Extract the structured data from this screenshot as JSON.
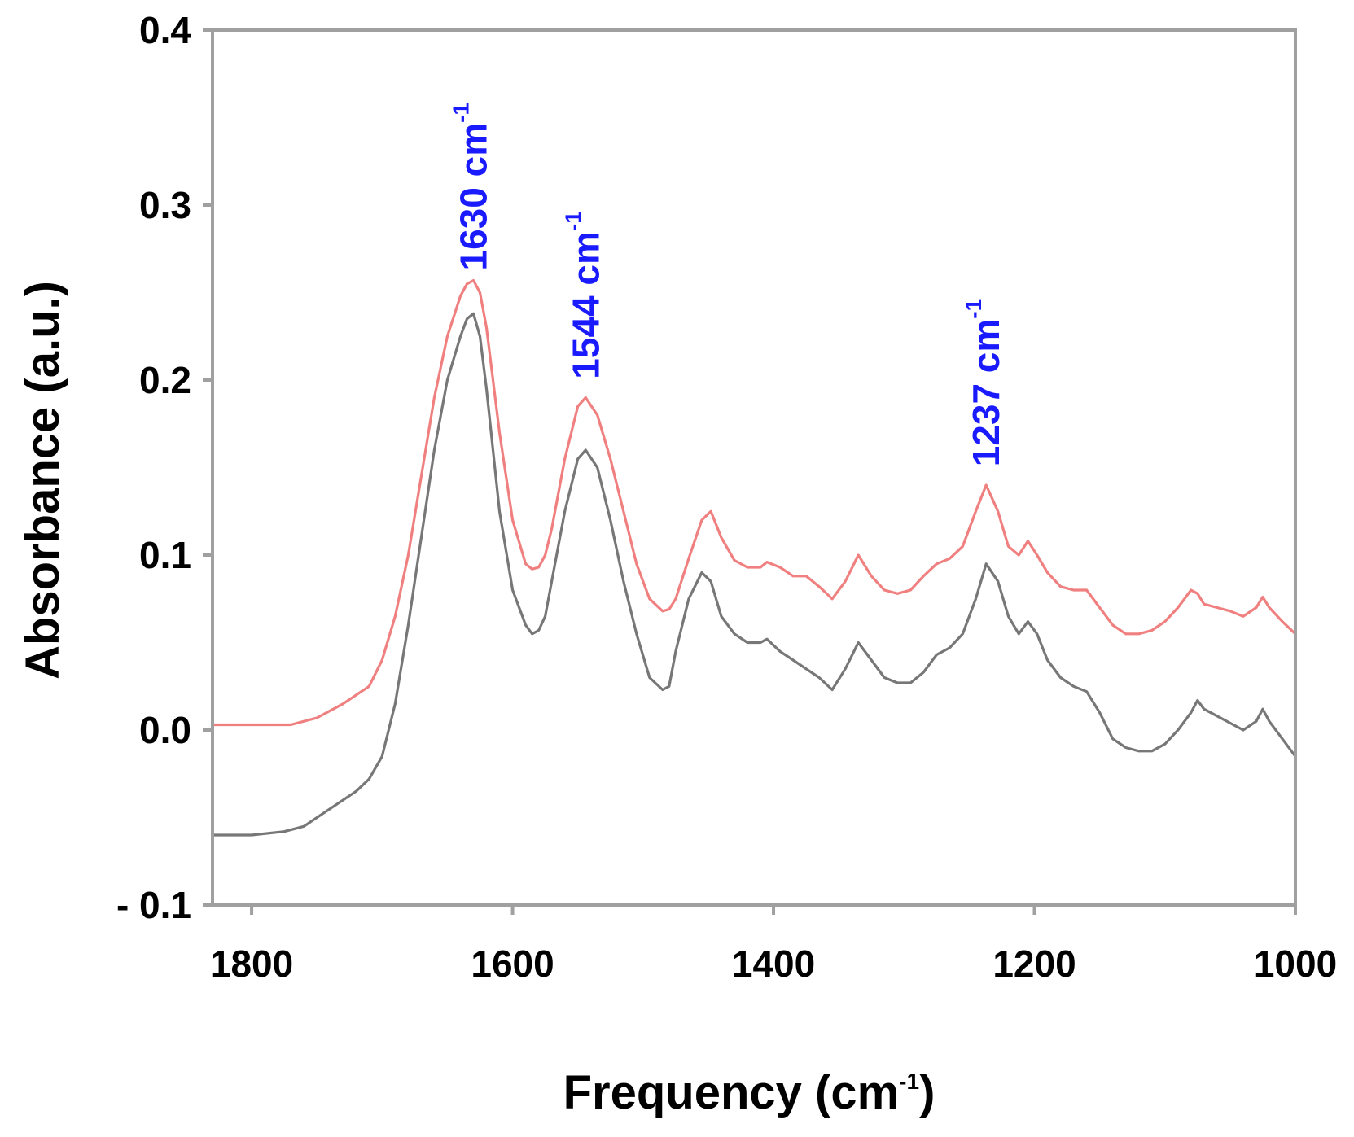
{
  "chart_data": {
    "type": "line",
    "xlabel": {
      "main": "Frequency (cm",
      "sup": "-1",
      "close": ")"
    },
    "ylabel": "Absorbance (a.u.)",
    "xlim": [
      1830,
      1000
    ],
    "ylim": [
      -0.1,
      0.4
    ],
    "x_axis_reversed": true,
    "grid": false,
    "x_ticks": [
      {
        "value": 1800,
        "label": "1800"
      },
      {
        "value": 1600,
        "label": "1600"
      },
      {
        "value": 1400,
        "label": "1400"
      },
      {
        "value": 1200,
        "label": "1200"
      },
      {
        "value": 1000,
        "label": "1000"
      }
    ],
    "y_ticks": [
      {
        "value": 0.4,
        "label": "0.4"
      },
      {
        "value": 0.3,
        "label": "0.3"
      },
      {
        "value": 0.2,
        "label": "0.2"
      },
      {
        "value": 0.1,
        "label": "0.1"
      },
      {
        "value": 0.0,
        "label": "0.0"
      },
      {
        "value": -0.1,
        "label": "- 0.1"
      }
    ],
    "annotations": [
      {
        "x": 1630,
        "y": 0.257,
        "label": "1630 cm",
        "sup": "-1",
        "color": "#1a1aff"
      },
      {
        "x": 1544,
        "y": 0.195,
        "label": "1544 cm",
        "sup": "-1",
        "color": "#1a1aff"
      },
      {
        "x": 1237,
        "y": 0.145,
        "label": "1237 cm",
        "sup": "-1",
        "color": "#1a1aff"
      }
    ],
    "series": [
      {
        "color": "#f08080",
        "x": [
          1830,
          1800,
          1770,
          1750,
          1730,
          1710,
          1700,
          1690,
          1680,
          1670,
          1660,
          1650,
          1640,
          1635,
          1630,
          1625,
          1620,
          1610,
          1600,
          1590,
          1585,
          1580,
          1575,
          1570,
          1560,
          1550,
          1544,
          1535,
          1525,
          1515,
          1505,
          1495,
          1485,
          1480,
          1475,
          1465,
          1455,
          1448,
          1440,
          1430,
          1420,
          1410,
          1405,
          1395,
          1385,
          1375,
          1365,
          1355,
          1345,
          1335,
          1325,
          1315,
          1305,
          1295,
          1285,
          1275,
          1265,
          1255,
          1245,
          1237,
          1228,
          1220,
          1212,
          1205,
          1198,
          1190,
          1180,
          1170,
          1160,
          1150,
          1140,
          1130,
          1120,
          1110,
          1100,
          1090,
          1080,
          1075,
          1070,
          1060,
          1050,
          1040,
          1030,
          1025,
          1020,
          1010,
          1000
        ],
        "y": [
          0.003,
          0.003,
          0.003,
          0.007,
          0.015,
          0.025,
          0.04,
          0.065,
          0.1,
          0.145,
          0.19,
          0.225,
          0.248,
          0.255,
          0.257,
          0.25,
          0.23,
          0.17,
          0.12,
          0.095,
          0.092,
          0.093,
          0.1,
          0.115,
          0.155,
          0.185,
          0.19,
          0.18,
          0.155,
          0.125,
          0.095,
          0.075,
          0.068,
          0.069,
          0.075,
          0.098,
          0.12,
          0.125,
          0.11,
          0.097,
          0.093,
          0.093,
          0.096,
          0.093,
          0.088,
          0.088,
          0.082,
          0.075,
          0.085,
          0.1,
          0.088,
          0.08,
          0.078,
          0.08,
          0.088,
          0.095,
          0.098,
          0.105,
          0.125,
          0.14,
          0.125,
          0.105,
          0.1,
          0.108,
          0.1,
          0.09,
          0.082,
          0.08,
          0.08,
          0.07,
          0.06,
          0.055,
          0.055,
          0.057,
          0.062,
          0.07,
          0.08,
          0.078,
          0.072,
          0.07,
          0.068,
          0.065,
          0.07,
          0.076,
          0.07,
          0.062,
          0.055
        ]
      },
      {
        "color": "#777777",
        "x": [
          1830,
          1800,
          1775,
          1760,
          1740,
          1720,
          1710,
          1700,
          1690,
          1680,
          1670,
          1660,
          1650,
          1640,
          1635,
          1630,
          1625,
          1620,
          1610,
          1600,
          1590,
          1585,
          1580,
          1575,
          1570,
          1560,
          1550,
          1544,
          1535,
          1525,
          1515,
          1505,
          1495,
          1485,
          1480,
          1475,
          1465,
          1455,
          1448,
          1440,
          1430,
          1420,
          1410,
          1405,
          1395,
          1385,
          1375,
          1365,
          1355,
          1345,
          1335,
          1325,
          1315,
          1305,
          1295,
          1285,
          1275,
          1265,
          1255,
          1245,
          1237,
          1228,
          1220,
          1212,
          1205,
          1198,
          1190,
          1180,
          1170,
          1160,
          1150,
          1140,
          1130,
          1120,
          1110,
          1100,
          1090,
          1080,
          1075,
          1070,
          1060,
          1050,
          1040,
          1030,
          1025,
          1020,
          1010,
          1000
        ],
        "y": [
          -0.06,
          -0.06,
          -0.058,
          -0.055,
          -0.045,
          -0.035,
          -0.028,
          -0.015,
          0.015,
          0.06,
          0.11,
          0.16,
          0.2,
          0.225,
          0.235,
          0.238,
          0.225,
          0.195,
          0.125,
          0.08,
          0.06,
          0.055,
          0.057,
          0.065,
          0.085,
          0.125,
          0.155,
          0.16,
          0.15,
          0.12,
          0.085,
          0.055,
          0.03,
          0.023,
          0.025,
          0.045,
          0.075,
          0.09,
          0.085,
          0.065,
          0.055,
          0.05,
          0.05,
          0.052,
          0.045,
          0.04,
          0.035,
          0.03,
          0.023,
          0.035,
          0.05,
          0.04,
          0.03,
          0.027,
          0.027,
          0.033,
          0.043,
          0.047,
          0.055,
          0.075,
          0.095,
          0.085,
          0.065,
          0.055,
          0.062,
          0.055,
          0.04,
          0.03,
          0.025,
          0.022,
          0.01,
          -0.005,
          -0.01,
          -0.012,
          -0.012,
          -0.008,
          0.0,
          0.01,
          0.017,
          0.012,
          0.008,
          0.004,
          0.0,
          0.005,
          0.012,
          0.005,
          -0.005,
          -0.015
        ]
      }
    ]
  }
}
